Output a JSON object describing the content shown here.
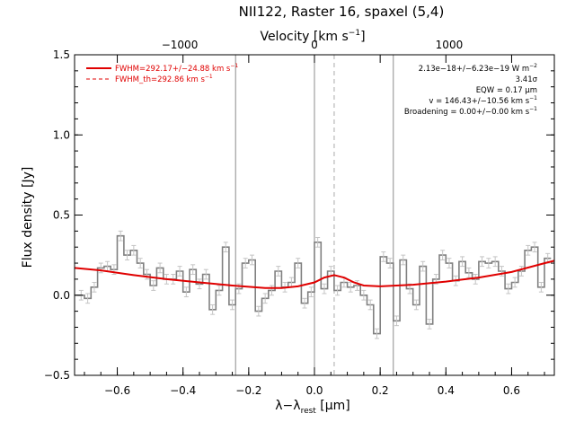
{
  "chart_data": {
    "type": "line",
    "title": "NII122, Raster 16, spaxel (5,4)",
    "xlabel_base": "λ−λ",
    "xlabel_sub": "rest",
    "xlabel_unit": " [μm]",
    "ylabel": "Flux density [Jy]",
    "top_axis_label": "Velocity [km s",
    "top_axis_label_sup": "−1",
    "top_axis_label_end": "]",
    "xlim": [
      -0.73,
      0.73
    ],
    "ylim": [
      -0.5,
      1.5
    ],
    "x_ticks": [
      "−0.6",
      "−0.4",
      "−0.2",
      "0.0",
      "0.2",
      "0.4",
      "0.6"
    ],
    "x_tick_values": [
      -0.6,
      -0.4,
      -0.2,
      0.0,
      0.2,
      0.4,
      0.6
    ],
    "y_ticks": [
      "−0.5",
      "0.0",
      "0.5",
      "1.0",
      "1.5"
    ],
    "y_tick_values": [
      -0.5,
      0.0,
      0.5,
      1.0,
      1.5
    ],
    "top_ticks": [
      "−1000",
      "0",
      "1000"
    ],
    "top_tick_x": [
      -0.41,
      0.0,
      0.41
    ],
    "vertical_lines_solid": [
      -0.24,
      0.0,
      0.24
    ],
    "vertical_line_dashed": 0.06,
    "legend": [
      {
        "label": "FWHM=292.17+/−24.88 km s",
        "sup": "−1",
        "style": "solid",
        "color": "#e00000"
      },
      {
        "label": "FWHM_th=292.86 km s",
        "sup": "−1",
        "style": "dashed",
        "color": "#e00000"
      }
    ],
    "annotations": [
      {
        "text": "2.13e−18+/−6.23e−19 W m",
        "sup": "−2"
      },
      {
        "text": "3.41σ",
        "sup": ""
      },
      {
        "text": "EQW = 0.17 μm",
        "sup": ""
      },
      {
        "text": "v = 146.43+/−10.56 km s",
        "sup": "−1"
      },
      {
        "text": "Broadening = 0.00+/−0.00 km s",
        "sup": "−1"
      }
    ],
    "series": [
      {
        "style": "step",
        "color": "#808080",
        "x": [
          -0.71,
          -0.69,
          -0.67,
          -0.65,
          -0.63,
          -0.61,
          -0.59,
          -0.57,
          -0.55,
          -0.53,
          -0.51,
          -0.49,
          -0.47,
          -0.45,
          -0.43,
          -0.41,
          -0.39,
          -0.37,
          -0.35,
          -0.33,
          -0.31,
          -0.29,
          -0.27,
          -0.25,
          -0.23,
          -0.21,
          -0.19,
          -0.17,
          -0.15,
          -0.13,
          -0.11,
          -0.09,
          -0.07,
          -0.05,
          -0.03,
          -0.01,
          0.01,
          0.03,
          0.05,
          0.07,
          0.09,
          0.11,
          0.13,
          0.15,
          0.17,
          0.19,
          0.21,
          0.23,
          0.25,
          0.27,
          0.29,
          0.31,
          0.33,
          0.35,
          0.37,
          0.39,
          0.41,
          0.43,
          0.45,
          0.47,
          0.49,
          0.51,
          0.53,
          0.55,
          0.57,
          0.59,
          0.61,
          0.63,
          0.65,
          0.67,
          0.69,
          0.71
        ],
        "y": [
          0.0,
          -0.02,
          0.05,
          0.17,
          0.18,
          0.16,
          0.37,
          0.25,
          0.28,
          0.2,
          0.13,
          0.06,
          0.17,
          0.1,
          0.1,
          0.15,
          0.02,
          0.16,
          0.07,
          0.13,
          -0.09,
          0.03,
          0.3,
          -0.06,
          0.04,
          0.2,
          0.22,
          -0.1,
          -0.02,
          0.03,
          0.15,
          0.05,
          0.08,
          0.2,
          -0.05,
          0.02,
          0.33,
          0.04,
          0.15,
          0.03,
          0.08,
          0.05,
          0.06,
          0.0,
          -0.06,
          -0.24,
          0.24,
          0.2,
          -0.16,
          0.22,
          0.04,
          -0.06,
          0.18,
          -0.18,
          0.1,
          0.25,
          0.2,
          0.09,
          0.21,
          0.14,
          0.1,
          0.21,
          0.2,
          0.21,
          0.15,
          0.04,
          0.08,
          0.15,
          0.28,
          0.3,
          0.05,
          0.23
        ]
      },
      {
        "style": "smooth",
        "color": "#e00000",
        "x": [
          -0.73,
          -0.65,
          -0.55,
          -0.45,
          -0.35,
          -0.25,
          -0.15,
          -0.1,
          -0.05,
          0.0,
          0.03,
          0.06,
          0.09,
          0.12,
          0.15,
          0.2,
          0.3,
          0.4,
          0.5,
          0.6,
          0.7,
          0.73
        ],
        "y": [
          0.17,
          0.155,
          0.125,
          0.1,
          0.08,
          0.06,
          0.045,
          0.045,
          0.055,
          0.08,
          0.11,
          0.125,
          0.11,
          0.08,
          0.06,
          0.055,
          0.065,
          0.085,
          0.11,
          0.145,
          0.2,
          0.215
        ]
      }
    ]
  }
}
